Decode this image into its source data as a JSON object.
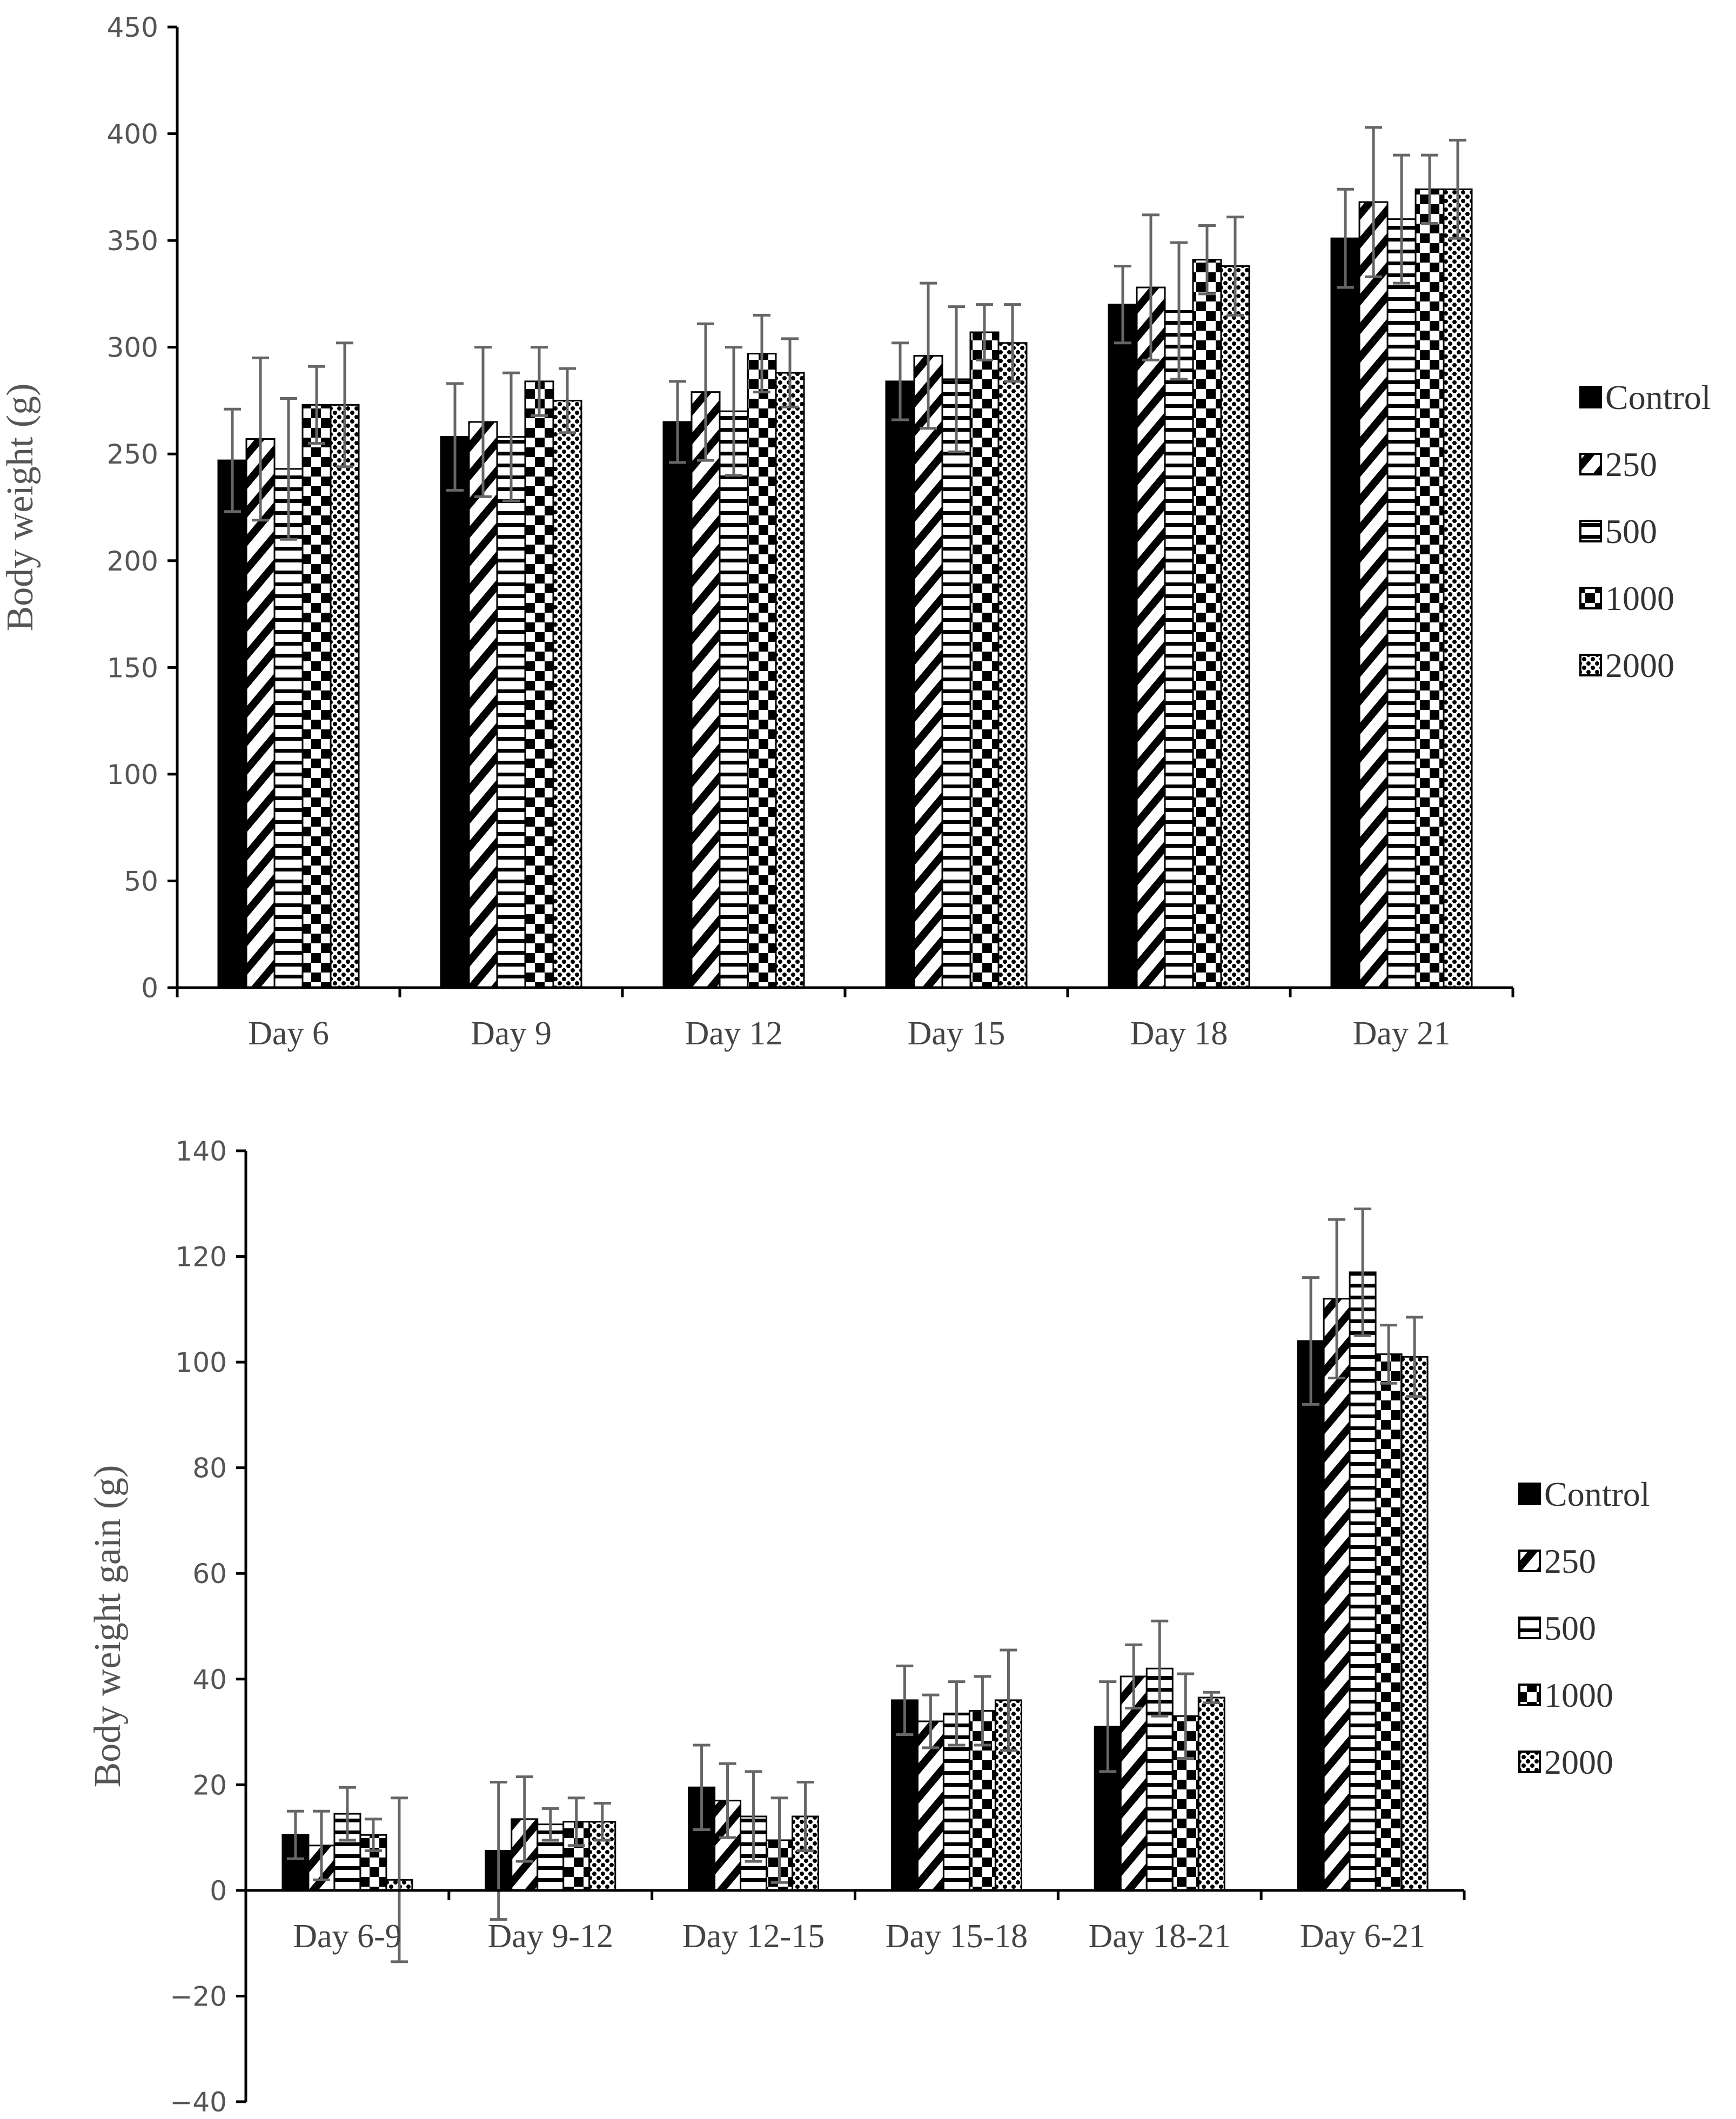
{
  "chart_data": [
    {
      "type": "bar",
      "title": "",
      "xlabel": "",
      "ylabel": "Body weight (g)",
      "ylim": [
        0,
        450
      ],
      "yticks": [
        0,
        50,
        100,
        150,
        200,
        250,
        300,
        350,
        400,
        450
      ],
      "categories": [
        "Day 6",
        "Day 9",
        "Day 12",
        "Day 15",
        "Day 18",
        "Day 21"
      ],
      "series": [
        {
          "name": "Control",
          "pattern": "solid",
          "values": [
            247,
            258,
            265,
            284,
            320,
            351
          ],
          "errors": [
            24,
            25,
            19,
            18,
            18,
            23
          ]
        },
        {
          "name": "250",
          "pattern": "diag",
          "values": [
            257,
            265,
            279,
            296,
            328,
            368
          ],
          "errors": [
            38,
            35,
            32,
            34,
            34,
            35
          ]
        },
        {
          "name": "500",
          "pattern": "hstripe",
          "values": [
            243,
            258,
            270,
            285,
            317,
            360
          ],
          "errors": [
            33,
            30,
            30,
            34,
            32,
            30
          ]
        },
        {
          "name": "1000",
          "pattern": "checker",
          "values": [
            273,
            284,
            297,
            307,
            341,
            374
          ],
          "errors": [
            18,
            16,
            18,
            13,
            16,
            16
          ]
        },
        {
          "name": "2000",
          "pattern": "dots",
          "values": [
            273,
            275,
            288,
            302,
            338,
            374
          ],
          "errors": [
            29,
            15,
            16,
            18,
            23,
            23
          ]
        }
      ],
      "legend": {
        "position": "right",
        "entries": [
          "Control",
          "250",
          "500",
          "1000",
          "2000"
        ]
      }
    },
    {
      "type": "bar",
      "title": "",
      "xlabel": "",
      "ylabel": "Body weight gain (g)",
      "ylim": [
        -40,
        140
      ],
      "yticks": [
        -40,
        -20,
        0,
        20,
        40,
        60,
        80,
        100,
        120,
        140
      ],
      "ytick_labels": [
        "−40",
        "−20",
        "0",
        "20",
        "40",
        "60",
        "80",
        "100",
        "120",
        "140"
      ],
      "categories": [
        "Day 6-9",
        "Day 9-12",
        "Day 12-15",
        "Day 15-18",
        "Day 18-21",
        "Day 6-21"
      ],
      "series": [
        {
          "name": "Control",
          "pattern": "solid",
          "values": [
            10.5,
            7.5,
            19.5,
            36,
            31,
            104
          ],
          "errors": [
            4.5,
            13,
            8,
            6.5,
            8.5,
            12
          ]
        },
        {
          "name": "250",
          "pattern": "diag",
          "values": [
            8.5,
            13.5,
            17,
            32,
            40.5,
            112
          ],
          "errors": [
            6.5,
            8,
            7,
            5,
            6,
            15
          ]
        },
        {
          "name": "500",
          "pattern": "hstripe",
          "values": [
            14.5,
            12.5,
            14,
            33.5,
            42,
            117
          ],
          "errors": [
            5,
            3,
            8.5,
            6,
            9,
            12
          ]
        },
        {
          "name": "1000",
          "pattern": "checker",
          "values": [
            10.5,
            13,
            9.5,
            34,
            33,
            101.5
          ],
          "errors": [
            3,
            4.5,
            8,
            6.5,
            8,
            5.5
          ]
        },
        {
          "name": "2000",
          "pattern": "dots",
          "values": [
            2,
            13,
            14,
            36,
            36.5,
            101
          ],
          "errors": [
            15.5,
            3.5,
            6.5,
            9.5,
            1,
            7.5
          ]
        }
      ],
      "legend": {
        "position": "right",
        "entries": [
          "Control",
          "250",
          "500",
          "1000",
          "2000"
        ]
      }
    }
  ]
}
